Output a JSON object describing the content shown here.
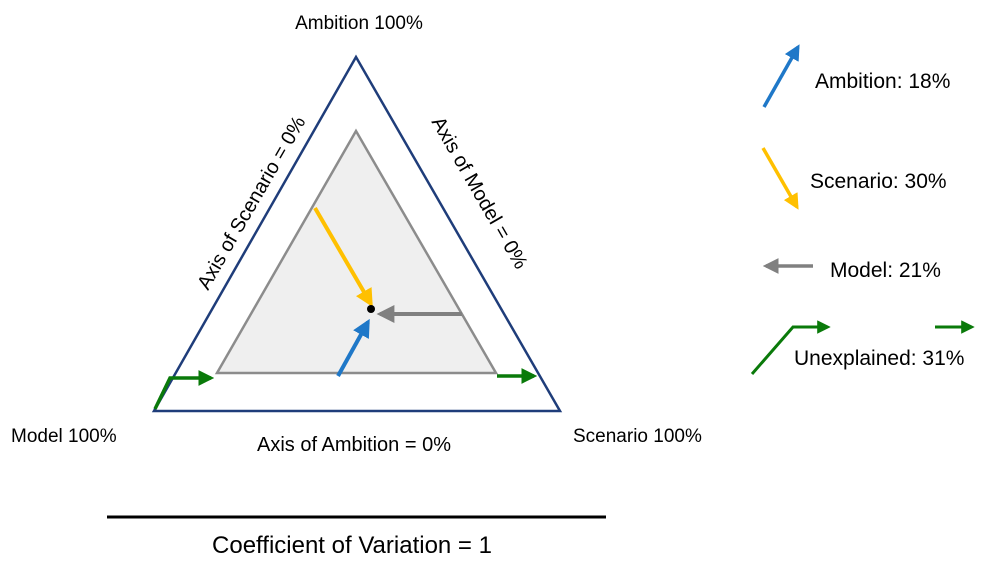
{
  "vertices": {
    "top": "Ambition 100%",
    "left": "Model 100%",
    "right": "Scenario 100%"
  },
  "axes": {
    "scenario": "Axis of Scenario = 0%",
    "model": "Axis of Model = 0%",
    "ambition": "Axis of Ambition = 0%"
  },
  "legend": {
    "ambition": "Ambition: 18%",
    "scenario": "Scenario: 30%",
    "model": "Model: 21%",
    "unexplained": "Unexplained: 31%"
  },
  "caption": "Coefficient of Variation = 1",
  "shares": {
    "ambition": 0.18,
    "scenario": 0.3,
    "model": 0.21,
    "unexplained": 0.31
  },
  "colors": {
    "outer_triangle": "#1f3d7a",
    "inner_triangle": "#8c8c8c",
    "inner_fill": "#efefef",
    "ambition": "#1f78c8",
    "scenario": "#ffc000",
    "model": "#808080",
    "unexplained": "#0a7a0a",
    "point": "#000000"
  }
}
